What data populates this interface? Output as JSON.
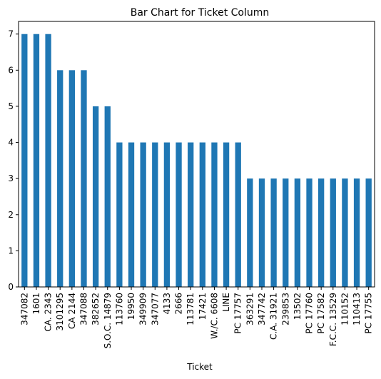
{
  "chart_data": {
    "type": "bar",
    "title": "Bar Chart for Ticket Column",
    "xlabel": "Ticket",
    "ylabel": "",
    "ylim": [
      0,
      7.35
    ],
    "yticks": [
      0,
      1,
      2,
      3,
      4,
      5,
      6,
      7
    ],
    "grid": false,
    "legend": "none",
    "bar_color": "#1f77b4",
    "categories": [
      "347082",
      "1601",
      "CA. 2343",
      "3101295",
      "CA 2144",
      "347088",
      "382652",
      "S.O.C. 14879",
      "113760",
      "19950",
      "349909",
      "347077",
      "4133",
      "2666",
      "113781",
      "17421",
      "W./C. 6608",
      "LINE",
      "PC 17757",
      "363291",
      "347742",
      "C.A. 31921",
      "239853",
      "13502",
      "PC 17760",
      "PC 17582",
      "F.C.C. 13529",
      "110152",
      "110413",
      "PC 17755"
    ],
    "values": [
      7,
      7,
      7,
      6,
      6,
      6,
      5,
      5,
      4,
      4,
      4,
      4,
      4,
      4,
      4,
      4,
      4,
      4,
      4,
      3,
      3,
      3,
      3,
      3,
      3,
      3,
      3,
      3,
      3,
      3
    ]
  }
}
